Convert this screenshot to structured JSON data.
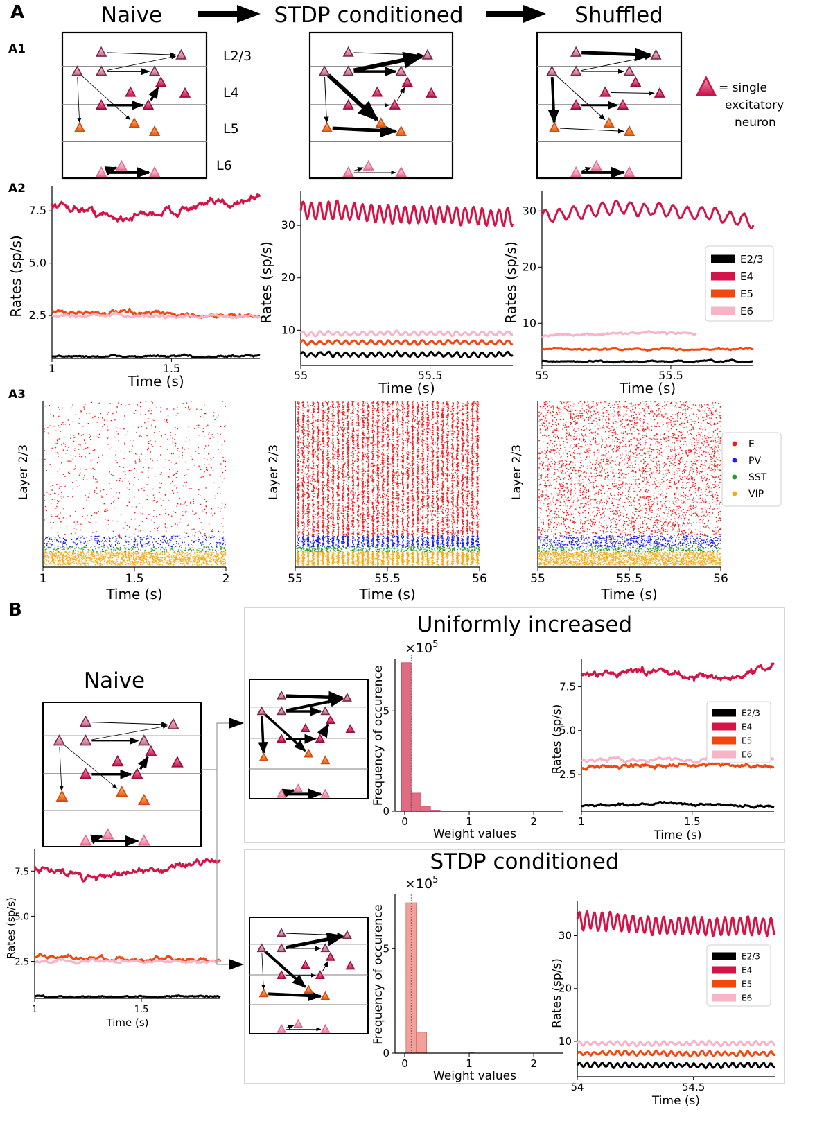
{
  "panel_labels": {
    "A": "A",
    "A1": "A1",
    "A2": "A2",
    "A3": "A3",
    "B": "B"
  },
  "conditions": {
    "naive": "Naive",
    "stdp": "STDP conditioned",
    "shuffled": "Shuffled"
  },
  "layers": {
    "l23": "L2/3",
    "l4": "L4",
    "l5": "L5",
    "l6": "L6"
  },
  "neuron_legend": {
    "line1": "= single",
    "line2": "excitatory",
    "line3": "neuron"
  },
  "colors": {
    "E2/3": "#000000",
    "E4": "#d41446",
    "E5": "#f24810",
    "E6": "#f7b4c6",
    "E": "#ee1c1c",
    "PV": "#1a22e6",
    "SST": "#2a9a2a",
    "VIP": "#f5aa1a",
    "hist1": "#e06c82",
    "hist2": "#f4a09a"
  },
  "rate_legend": [
    "E2/3",
    "E4",
    "E5",
    "E6"
  ],
  "raster_legend": [
    "E",
    "PV",
    "SST",
    "VIP"
  ],
  "axis_labels": {
    "rates": "Rates (sp/s)",
    "time": "Time (s)",
    "layer": "Layer 2/3",
    "freq": "Frequency of occurence",
    "weights": "Weight values",
    "multiplier": "×10^5"
  },
  "B_titles": {
    "naive": "Naive",
    "uniform": "Uniformly increased",
    "stdp": "STDP conditioned"
  },
  "chart_data": [
    {
      "id": "A2-naive",
      "type": "line",
      "title": "",
      "xlabel": "Time (s)",
      "ylabel": "Rates (sp/s)",
      "xlim": [
        1.0,
        1.87
      ],
      "ylim": [
        0.45,
        8.7
      ],
      "xticks": [
        1,
        1.5
      ],
      "xtick_labels": [
        "1",
        "1.5"
      ],
      "yticks": [
        2.5,
        5.0,
        7.5
      ],
      "ytick_labels": [
        "2.5",
        "5.0",
        "7.5"
      ],
      "series": [
        {
          "name": "E4",
          "mean": 7.55,
          "noise": 0.12,
          "trend": [
            [
              0,
              0.25
            ],
            [
              0.15,
              0.05
            ],
            [
              0.3,
              -0.4
            ],
            [
              0.6,
              0.0
            ],
            [
              0.75,
              0.2
            ],
            [
              1,
              0.6
            ]
          ],
          "osc": 0
        },
        {
          "name": "E5",
          "mean": 2.6,
          "noise": 0.07,
          "trend": [
            [
              0,
              0.1
            ],
            [
              1,
              -0.15
            ]
          ],
          "osc": 0
        },
        {
          "name": "E6",
          "mean": 2.45,
          "noise": 0.05,
          "trend": [
            [
              0,
              0.05
            ],
            [
              1,
              0.0
            ]
          ],
          "osc": 0
        },
        {
          "name": "E2/3",
          "mean": 0.55,
          "noise": 0.03,
          "trend": [],
          "osc": 0
        }
      ]
    },
    {
      "id": "A2-stdp",
      "type": "line",
      "title": "",
      "xlabel": "Time (s)",
      "ylabel": "Rates (sp/s)",
      "xlim": [
        55.0,
        55.82
      ],
      "ylim": [
        3.3,
        36.5
      ],
      "xticks": [
        55,
        55.5
      ],
      "xtick_labels": [
        "55",
        "55.5"
      ],
      "yticks": [
        10,
        20,
        30
      ],
      "ytick_labels": [
        "10",
        "20",
        "30"
      ],
      "series": [
        {
          "name": "E4",
          "mean": 32.2,
          "noise": 0.2,
          "trend": [
            [
              0,
              0.8
            ],
            [
              0.5,
              -0.2
            ],
            [
              1,
              -0.6
            ]
          ],
          "osc": 1.6,
          "period": 0.033
        },
        {
          "name": "E6",
          "mean": 9.4,
          "noise": 0.1,
          "trend": [],
          "osc": 0.35,
          "period": 0.033
        },
        {
          "name": "E5",
          "mean": 7.7,
          "noise": 0.1,
          "trend": [],
          "osc": 0.35,
          "period": 0.033
        },
        {
          "name": "E2/3",
          "mean": 5.4,
          "noise": 0.1,
          "trend": [],
          "osc": 0.4,
          "period": 0.033
        }
      ]
    },
    {
      "id": "A2-shuffled",
      "type": "line",
      "title": "",
      "xlabel": "Time (s)",
      "ylabel": "Rates (sp/s)",
      "xlim": [
        55.0,
        55.82
      ],
      "ylim": [
        2.5,
        33.5
      ],
      "xticks": [
        55,
        55.5
      ],
      "xtick_labels": [
        "55",
        "55.5"
      ],
      "yticks": [
        10,
        20,
        30
      ],
      "ytick_labels": [
        "10",
        "20",
        "30"
      ],
      "series": [
        {
          "name": "E4",
          "mean": 29.6,
          "noise": 0.2,
          "trend": [
            [
              0,
              -0.5
            ],
            [
              0.35,
              1.0
            ],
            [
              0.7,
              0.2
            ],
            [
              1,
              -1.2
            ]
          ],
          "osc": 1.1,
          "period": 0.055
        },
        {
          "name": "E6",
          "mean": 8.0,
          "noise": 0.1,
          "trend": [
            [
              0,
              -0.2
            ],
            [
              0.5,
              0.3
            ],
            [
              1,
              0.0
            ]
          ],
          "osc": 0,
          "xend": 55.6
        },
        {
          "name": "E5",
          "mean": 5.4,
          "noise": 0.08,
          "trend": [],
          "osc": 0
        },
        {
          "name": "E2/3",
          "mean": 3.2,
          "noise": 0.08,
          "trend": [],
          "osc": 0
        }
      ]
    },
    {
      "id": "B-uniform-rates",
      "type": "line",
      "title": "",
      "xlabel": "Time (s)",
      "ylabel": "Rates (sp/s)",
      "xlim": [
        1.0,
        1.87
      ],
      "ylim": [
        0.4,
        9.1
      ],
      "xticks": [
        1,
        1.5
      ],
      "xtick_labels": [
        "1",
        "1.5"
      ],
      "yticks": [
        2.5,
        5.0,
        7.5
      ],
      "ytick_labels": [
        "2.5",
        "5.0",
        "7.5"
      ],
      "series": [
        {
          "name": "E4",
          "mean": 8.2,
          "noise": 0.12,
          "trend": [
            [
              0,
              0.0
            ],
            [
              0.4,
              0.2
            ],
            [
              0.75,
              -0.3
            ],
            [
              1,
              0.5
            ]
          ],
          "osc": 0
        },
        {
          "name": "E6",
          "mean": 3.35,
          "noise": 0.06,
          "trend": [],
          "osc": 0
        },
        {
          "name": "E5",
          "mean": 2.95,
          "noise": 0.07,
          "trend": [
            [
              0,
              -0.05
            ],
            [
              0.3,
              0.1
            ],
            [
              1,
              0.0
            ]
          ],
          "osc": 0
        },
        {
          "name": "E2/3",
          "mean": 0.7,
          "noise": 0.04,
          "trend": [
            [
              0,
              0.0
            ],
            [
              0.4,
              0.15
            ],
            [
              1,
              -0.05
            ]
          ],
          "osc": 0
        }
      ]
    },
    {
      "id": "B-naive-rates",
      "type": "line",
      "title": "",
      "xlabel": "Time (s)",
      "ylabel": "Rates (sp/s)",
      "xlim": [
        1.0,
        1.87
      ],
      "ylim": [
        0.45,
        8.7
      ],
      "xticks": [
        1,
        1.5
      ],
      "xtick_labels": [
        "1",
        "1.5"
      ],
      "yticks": [
        2.5,
        5.0,
        7.5
      ],
      "ytick_labels": [
        "2.5",
        "5.0",
        "7.5"
      ],
      "series": [
        {
          "name": "E4",
          "mean": 7.55,
          "noise": 0.12,
          "trend": [
            [
              0,
              0.2
            ],
            [
              0.3,
              -0.4
            ],
            [
              0.6,
              0.0
            ],
            [
              1,
              0.6
            ]
          ],
          "osc": 0
        },
        {
          "name": "E5",
          "mean": 2.65,
          "noise": 0.07,
          "trend": [
            [
              0,
              0.1
            ],
            [
              1,
              -0.15
            ]
          ],
          "osc": 0
        },
        {
          "name": "E6",
          "mean": 2.5,
          "noise": 0.05,
          "trend": [],
          "osc": 0
        },
        {
          "name": "E2/3",
          "mean": 0.55,
          "noise": 0.03,
          "trend": [],
          "osc": 0
        }
      ]
    },
    {
      "id": "B-stdp-rates",
      "type": "line",
      "title": "",
      "xlabel": "Time (s)",
      "ylabel": "Rates (sp/s)",
      "xlim": [
        54.0,
        54.85
      ],
      "ylim": [
        3.3,
        36.5
      ],
      "xticks": [
        54,
        54.5
      ],
      "xtick_labels": [
        "54",
        "54.5"
      ],
      "yticks": [
        10,
        20,
        30
      ],
      "ytick_labels": [
        "10",
        "20",
        "30"
      ],
      "series": [
        {
          "name": "E4",
          "mean": 32.2,
          "noise": 0.2,
          "trend": [
            [
              0,
              0.8
            ],
            [
              0.5,
              -0.3
            ],
            [
              1,
              -0.5
            ]
          ],
          "osc": 1.6,
          "period": 0.033
        },
        {
          "name": "E6",
          "mean": 9.6,
          "noise": 0.1,
          "trend": [],
          "osc": 0.35,
          "period": 0.033
        },
        {
          "name": "E5",
          "mean": 7.7,
          "noise": 0.1,
          "trend": [],
          "osc": 0.35,
          "period": 0.033
        },
        {
          "name": "E2/3",
          "mean": 5.5,
          "noise": 0.1,
          "trend": [],
          "osc": 0.4,
          "period": 0.033
        }
      ]
    },
    {
      "id": "A3-naive",
      "type": "scatter",
      "title": "",
      "xlabel": "Time (s)",
      "ylabel": "Layer 2/3",
      "xlim": [
        1,
        2
      ],
      "xticks": [
        1,
        1.5,
        2
      ],
      "xtick_labels": [
        "1",
        "1.5",
        "2"
      ],
      "population_density": {
        "E": 800,
        "PV": 340,
        "SST": 230,
        "VIP": 1500
      }
    },
    {
      "id": "A3-stdp",
      "type": "scatter",
      "title": "",
      "xlabel": "Time (s)",
      "ylabel": "Layer 2/3",
      "xlim": [
        55,
        56
      ],
      "xticks": [
        55,
        55.5,
        56
      ],
      "xtick_labels": [
        "55",
        "55.5",
        "56"
      ],
      "population_density": {
        "E": 9000,
        "PV": 1300,
        "SST": 450,
        "VIP": 2400
      },
      "oscillation_cycles": 37
    },
    {
      "id": "A3-shuffled",
      "type": "scatter",
      "title": "",
      "xlabel": "Time (s)",
      "ylabel": "Layer 2/3",
      "xlim": [
        55,
        56
      ],
      "xticks": [
        55,
        55.5,
        56
      ],
      "xtick_labels": [
        "55",
        "55.5",
        "56"
      ],
      "population_density": {
        "E": 3600,
        "PV": 700,
        "SST": 350,
        "VIP": 1800
      },
      "oscillation_cycles": 0
    },
    {
      "id": "B-uniform-hist",
      "type": "bar",
      "title": "",
      "xlabel": "Weight values",
      "ylabel": "Frequency of occurence",
      "multiplier": "×10^5",
      "xlim": [
        -0.15,
        2.45
      ],
      "ylim": [
        0,
        7.6
      ],
      "xticks": [
        0,
        1,
        2
      ],
      "xtick_labels": [
        "0",
        "1",
        "2"
      ],
      "yticks": [
        0,
        5
      ],
      "ytick_labels": [
        "0",
        "5"
      ],
      "bin_edges": [
        -0.05,
        0.1,
        0.25,
        0.4,
        0.55
      ],
      "values": [
        7.4,
        0.9,
        0.25,
        0.05
      ]
    },
    {
      "id": "B-stdp-hist",
      "type": "bar",
      "title": "",
      "xlabel": "Weight values",
      "ylabel": "Frequency of occurence",
      "multiplier": "×10^5",
      "xlim": [
        -0.15,
        2.45
      ],
      "ylim": [
        0,
        7.6
      ],
      "xticks": [
        0,
        1,
        2
      ],
      "xtick_labels": [
        "0",
        "1",
        "2"
      ],
      "yticks": [
        0,
        5
      ],
      "ytick_labels": [
        "0",
        "5"
      ],
      "bin_edges": [
        0.02,
        0.18,
        0.34
      ],
      "values": [
        7.2,
        1.0
      ]
    }
  ]
}
